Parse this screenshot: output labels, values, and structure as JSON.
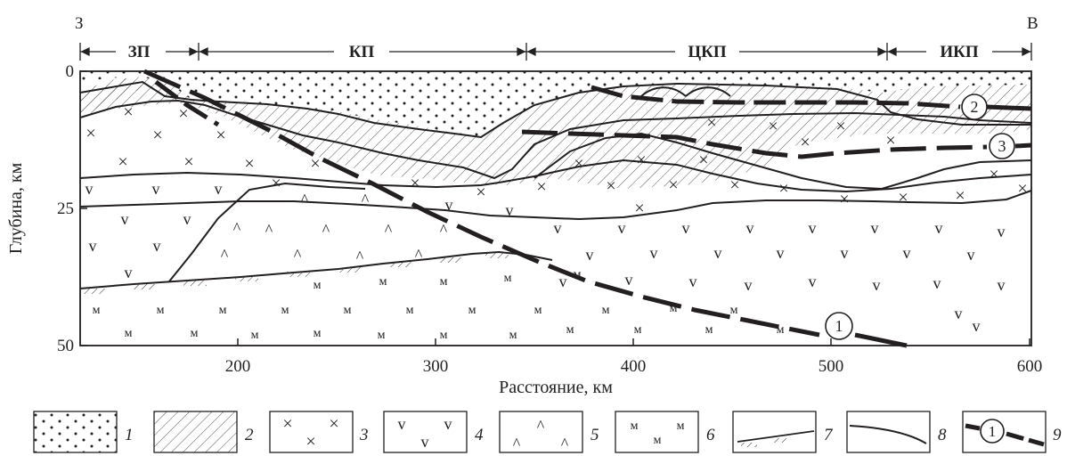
{
  "colors": {
    "ink": "#231f20",
    "background": "#ffffff"
  },
  "header": {
    "west_label": "З",
    "east_label": "В",
    "zones": [
      {
        "label": "ЗП"
      },
      {
        "label": "КП"
      },
      {
        "label": "ЦКП"
      },
      {
        "label": "ИКП"
      }
    ]
  },
  "axes": {
    "y_title": "Глубина, км",
    "x_title": "Расстояние, км",
    "y_ticks": [
      "0",
      "25",
      "50"
    ],
    "x_ticks": [
      "200",
      "300",
      "400",
      "500",
      "600"
    ]
  },
  "layer_symbols": {
    "cross": "×",
    "v": "v",
    "caret": "^",
    "m": "м"
  },
  "fault_labels": [
    "1",
    "2",
    "3"
  ],
  "legend": [
    {
      "number": "1",
      "pattern": "dots-icon"
    },
    {
      "number": "2",
      "pattern": "hatch-icon"
    },
    {
      "number": "3",
      "pattern": "cross-icon"
    },
    {
      "number": "4",
      "pattern": "v-icon"
    },
    {
      "number": "5",
      "pattern": "caret-icon"
    },
    {
      "number": "6",
      "pattern": "m-icon"
    },
    {
      "number": "7",
      "pattern": "moho-line-icon"
    },
    {
      "number": "8",
      "pattern": "boundary-line-icon"
    },
    {
      "number": "9",
      "pattern": "fault-line-icon"
    }
  ]
}
